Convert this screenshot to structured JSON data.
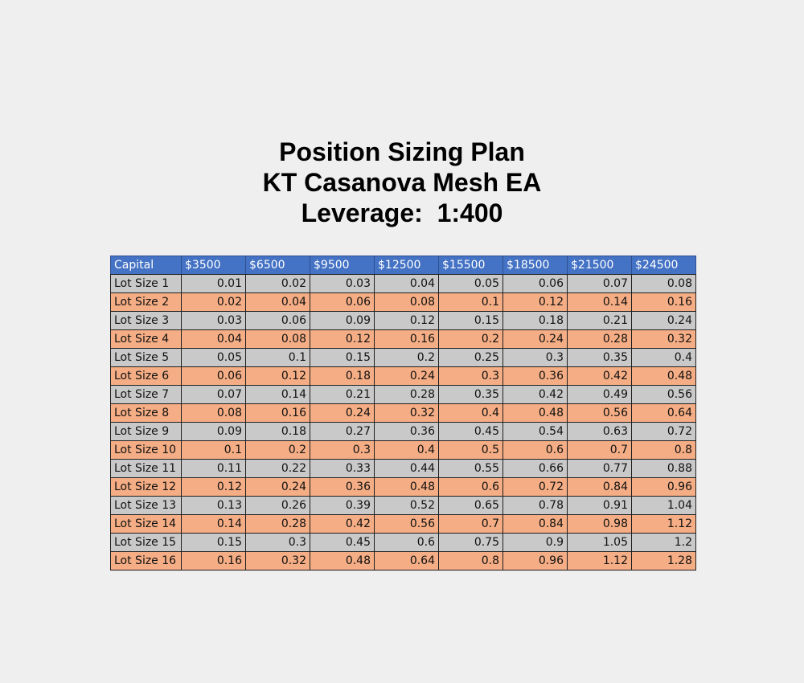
{
  "title": {
    "line1": "Position Sizing Plan",
    "line2": "KT Casanova Mesh EA",
    "line3": "Leverage:  1:400"
  },
  "table": {
    "header_label": "Capital",
    "columns": [
      "$3500",
      "$6500",
      "$9500",
      "$12500",
      "$15500",
      "$18500",
      "$21500",
      "$24500"
    ],
    "rows": [
      {
        "label": "Lot Size 1",
        "values": [
          "0.01",
          "0.02",
          "0.03",
          "0.04",
          "0.05",
          "0.06",
          "0.07",
          "0.08"
        ]
      },
      {
        "label": "Lot Size 2",
        "values": [
          "0.02",
          "0.04",
          "0.06",
          "0.08",
          "0.1",
          "0.12",
          "0.14",
          "0.16"
        ]
      },
      {
        "label": "Lot Size 3",
        "values": [
          "0.03",
          "0.06",
          "0.09",
          "0.12",
          "0.15",
          "0.18",
          "0.21",
          "0.24"
        ]
      },
      {
        "label": "Lot Size 4",
        "values": [
          "0.04",
          "0.08",
          "0.12",
          "0.16",
          "0.2",
          "0.24",
          "0.28",
          "0.32"
        ]
      },
      {
        "label": "Lot Size 5",
        "values": [
          "0.05",
          "0.1",
          "0.15",
          "0.2",
          "0.25",
          "0.3",
          "0.35",
          "0.4"
        ]
      },
      {
        "label": "Lot Size 6",
        "values": [
          "0.06",
          "0.12",
          "0.18",
          "0.24",
          "0.3",
          "0.36",
          "0.42",
          "0.48"
        ]
      },
      {
        "label": "Lot Size 7",
        "values": [
          "0.07",
          "0.14",
          "0.21",
          "0.28",
          "0.35",
          "0.42",
          "0.49",
          "0.56"
        ]
      },
      {
        "label": "Lot Size 8",
        "values": [
          "0.08",
          "0.16",
          "0.24",
          "0.32",
          "0.4",
          "0.48",
          "0.56",
          "0.64"
        ]
      },
      {
        "label": "Lot Size 9",
        "values": [
          "0.09",
          "0.18",
          "0.27",
          "0.36",
          "0.45",
          "0.54",
          "0.63",
          "0.72"
        ]
      },
      {
        "label": "Lot Size 10",
        "values": [
          "0.1",
          "0.2",
          "0.3",
          "0.4",
          "0.5",
          "0.6",
          "0.7",
          "0.8"
        ]
      },
      {
        "label": "Lot Size 11",
        "values": [
          "0.11",
          "0.22",
          "0.33",
          "0.44",
          "0.55",
          "0.66",
          "0.77",
          "0.88"
        ]
      },
      {
        "label": "Lot Size 12",
        "values": [
          "0.12",
          "0.24",
          "0.36",
          "0.48",
          "0.6",
          "0.72",
          "0.84",
          "0.96"
        ]
      },
      {
        "label": "Lot Size 13",
        "values": [
          "0.13",
          "0.26",
          "0.39",
          "0.52",
          "0.65",
          "0.78",
          "0.91",
          "1.04"
        ]
      },
      {
        "label": "Lot Size 14",
        "values": [
          "0.14",
          "0.28",
          "0.42",
          "0.56",
          "0.7",
          "0.84",
          "0.98",
          "1.12"
        ]
      },
      {
        "label": "Lot Size 15",
        "values": [
          "0.15",
          "0.3",
          "0.45",
          "0.6",
          "0.75",
          "0.9",
          "1.05",
          "1.2"
        ]
      },
      {
        "label": "Lot Size 16",
        "values": [
          "0.16",
          "0.32",
          "0.48",
          "0.64",
          "0.8",
          "0.96",
          "1.12",
          "1.28"
        ]
      }
    ]
  },
  "colors": {
    "background": "#efefef",
    "header": "#4472c4",
    "row_gray": "#c9c9c9",
    "row_orange": "#f4ad84"
  }
}
